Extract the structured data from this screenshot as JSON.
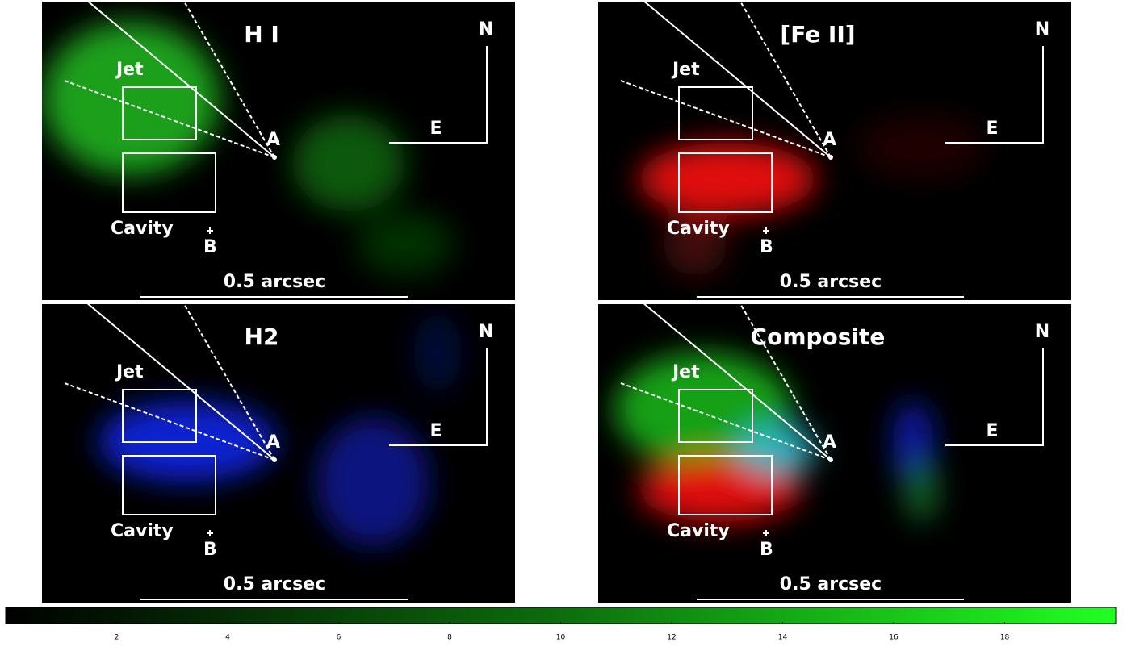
{
  "panels": [
    {
      "title": "H I",
      "jet": "Jet",
      "cavity": "Cavity",
      "a": "A",
      "b": "B",
      "n": "N",
      "e": "E",
      "scale": "0.5 arcsec"
    },
    {
      "title": "[Fe II]",
      "jet": "Jet",
      "cavity": "Cavity",
      "a": "A",
      "b": "B",
      "n": "N",
      "e": "E",
      "scale": "0.5 arcsec"
    },
    {
      "title": "H2",
      "jet": "Jet",
      "cavity": "Cavity",
      "a": "A",
      "b": "B",
      "n": "N",
      "e": "E",
      "scale": "0.5 arcsec"
    },
    {
      "title": "Composite",
      "jet": "Jet",
      "cavity": "Cavity",
      "a": "A",
      "b": "B",
      "n": "N",
      "e": "E",
      "scale": "0.5 arcsec"
    }
  ],
  "colorbar": {
    "lim": [
      0,
      20
    ],
    "ticks": [
      2,
      4,
      6,
      8,
      10,
      12,
      14,
      16,
      18
    ]
  }
}
